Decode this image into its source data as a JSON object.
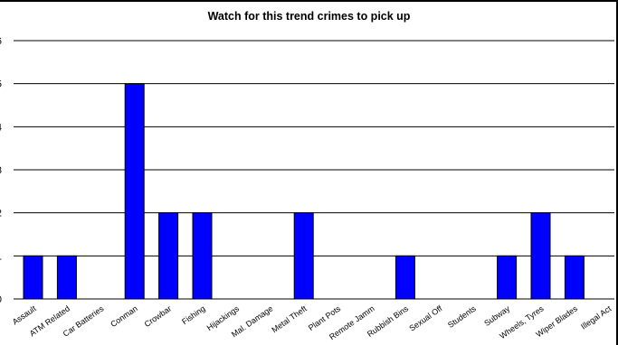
{
  "chart_data": {
    "type": "bar",
    "title": "Watch for this trend crimes to pick up",
    "xlabel": "",
    "ylabel": "",
    "categories": [
      "Assault",
      "ATM Related",
      "Car Batteries",
      "Conman",
      "Crowbar",
      "Fishing",
      "Hijackings",
      "Mal. Damage",
      "Metal Theft",
      "Plant Pots",
      "Remote Jamm",
      "Rubbish Bins",
      "Sexual Off",
      "Students",
      "Subway",
      "Wheels, Tyres",
      "Wiper Blades",
      "Illegal Act"
    ],
    "values": [
      1,
      1,
      0,
      5,
      2,
      2,
      0,
      0,
      2,
      0,
      0,
      1,
      0,
      0,
      1,
      2,
      1,
      0
    ],
    "ylim": [
      0,
      6
    ],
    "yticks": [
      0,
      1,
      2,
      3,
      4,
      5,
      6
    ],
    "grid": true,
    "bar_color": "#0000ff",
    "legend": "none"
  }
}
